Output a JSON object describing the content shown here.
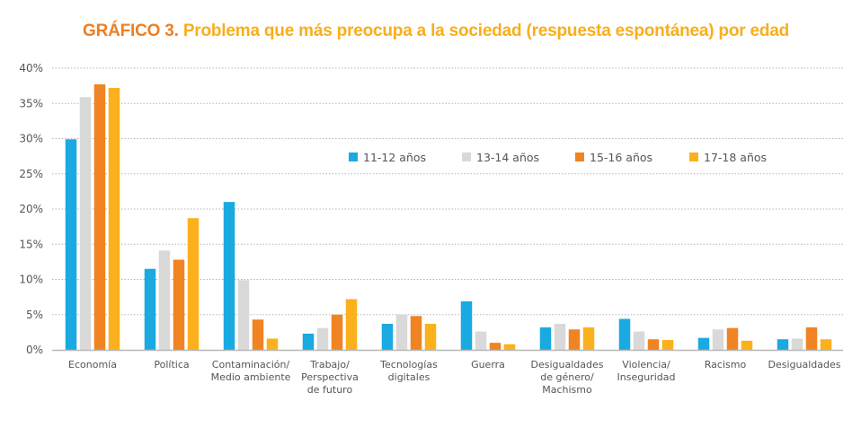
{
  "chart_data": {
    "type": "bar",
    "title_prefix": "GRÁFICO 3.",
    "title": "Problema que más preocupa a la sociedad (respuesta espontánea) por edad",
    "xlabel": "",
    "ylabel": "",
    "ylim": [
      0,
      40
    ],
    "yticks": [
      0,
      5,
      10,
      15,
      20,
      25,
      30,
      35,
      40
    ],
    "ytick_format": "%",
    "grid": true,
    "legend_position": "top-right",
    "categories": [
      [
        "Economía"
      ],
      [
        "Política"
      ],
      [
        "Contaminación/",
        "Medio ambiente"
      ],
      [
        "Trabajo/",
        "Perspectiva",
        "de futuro"
      ],
      [
        "Tecnologías",
        "digitales"
      ],
      [
        "Guerra"
      ],
      [
        "Desigualdades",
        "de género/",
        "Machismo"
      ],
      [
        "Violencia/",
        "Inseguridad"
      ],
      [
        "Racismo"
      ],
      [
        "Desigualdades"
      ]
    ],
    "series": [
      {
        "name": "11-12 años",
        "color": "#1ba9e1",
        "values": [
          29.9,
          11.5,
          21.0,
          2.3,
          3.7,
          6.9,
          3.2,
          4.4,
          1.7,
          1.5
        ]
      },
      {
        "name": "13-14 años",
        "color": "#d9d9da",
        "values": [
          35.9,
          14.1,
          9.9,
          3.1,
          5.0,
          2.6,
          3.7,
          2.6,
          2.9,
          1.6
        ]
      },
      {
        "name": "15-16 años",
        "color": "#f08322",
        "values": [
          37.7,
          12.8,
          4.3,
          5.0,
          4.8,
          1.0,
          2.9,
          1.5,
          3.1,
          3.2
        ]
      },
      {
        "name": "17-18 años",
        "color": "#fbb11d",
        "values": [
          37.2,
          18.7,
          1.6,
          7.2,
          3.7,
          0.8,
          3.2,
          1.4,
          1.3,
          1.5
        ]
      }
    ]
  }
}
